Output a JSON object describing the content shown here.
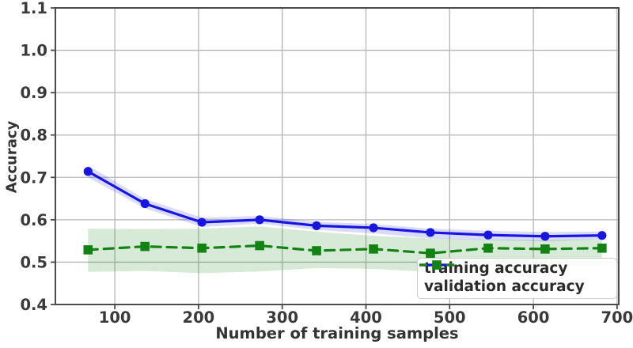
{
  "figure": {
    "type": "learning-curve-plot"
  },
  "colors": {
    "background": "#ffffff",
    "grid": "#b5b5b5",
    "spine": "#4b4b4b",
    "tick_text": "#3a3a3a",
    "legend_border": "#cccccc",
    "training_blue": "#1616e0",
    "validation_green": "#128312"
  },
  "chart_data": {
    "type": "line",
    "title": "",
    "xlabel": "Number of training samples",
    "ylabel": "Accuracy",
    "xlim": [
      29,
      702
    ],
    "ylim": [
      0.4,
      1.1
    ],
    "grid": true,
    "legend_position": "lower right",
    "xticks": [
      100,
      200,
      300,
      400,
      500,
      600,
      700
    ],
    "xtick_labels": [
      "100",
      "200",
      "300",
      "400",
      "500",
      "600",
      "700"
    ],
    "yticks": [
      0.4,
      0.5,
      0.6,
      0.7,
      0.8,
      0.9,
      1.0,
      1.1
    ],
    "ytick_labels": [
      "0.4",
      "0.5",
      "0.6",
      "0.7",
      "0.8",
      "0.9",
      "1.0",
      "1.1"
    ],
    "x": [
      68,
      136,
      204,
      273,
      341,
      409,
      477,
      546,
      614,
      682
    ],
    "series": [
      {
        "name": "training accuracy",
        "color": "#1616e0",
        "marker": "circle",
        "line_style": "solid",
        "values": [
          0.714,
          0.638,
          0.594,
          0.6,
          0.586,
          0.581,
          0.57,
          0.564,
          0.561,
          0.563
        ],
        "band_upper": [
          0.728,
          0.649,
          0.605,
          0.609,
          0.595,
          0.59,
          0.579,
          0.574,
          0.571,
          0.572
        ],
        "band_lower": [
          0.7,
          0.627,
          0.583,
          0.591,
          0.576,
          0.568,
          0.556,
          0.552,
          0.549,
          0.554
        ],
        "band_opacity": 0.16
      },
      {
        "name": "validation accuracy",
        "color": "#128312",
        "marker": "square",
        "line_style": "dashed",
        "values": [
          0.529,
          0.537,
          0.533,
          0.539,
          0.527,
          0.531,
          0.521,
          0.533,
          0.531,
          0.533
        ],
        "band_upper": [
          0.579,
          0.578,
          0.579,
          0.584,
          0.572,
          0.562,
          0.556,
          0.553,
          0.552,
          0.554
        ],
        "band_lower": [
          0.477,
          0.479,
          0.474,
          0.478,
          0.486,
          0.484,
          0.477,
          0.487,
          0.49,
          0.491
        ],
        "band_opacity": 0.17
      }
    ]
  }
}
